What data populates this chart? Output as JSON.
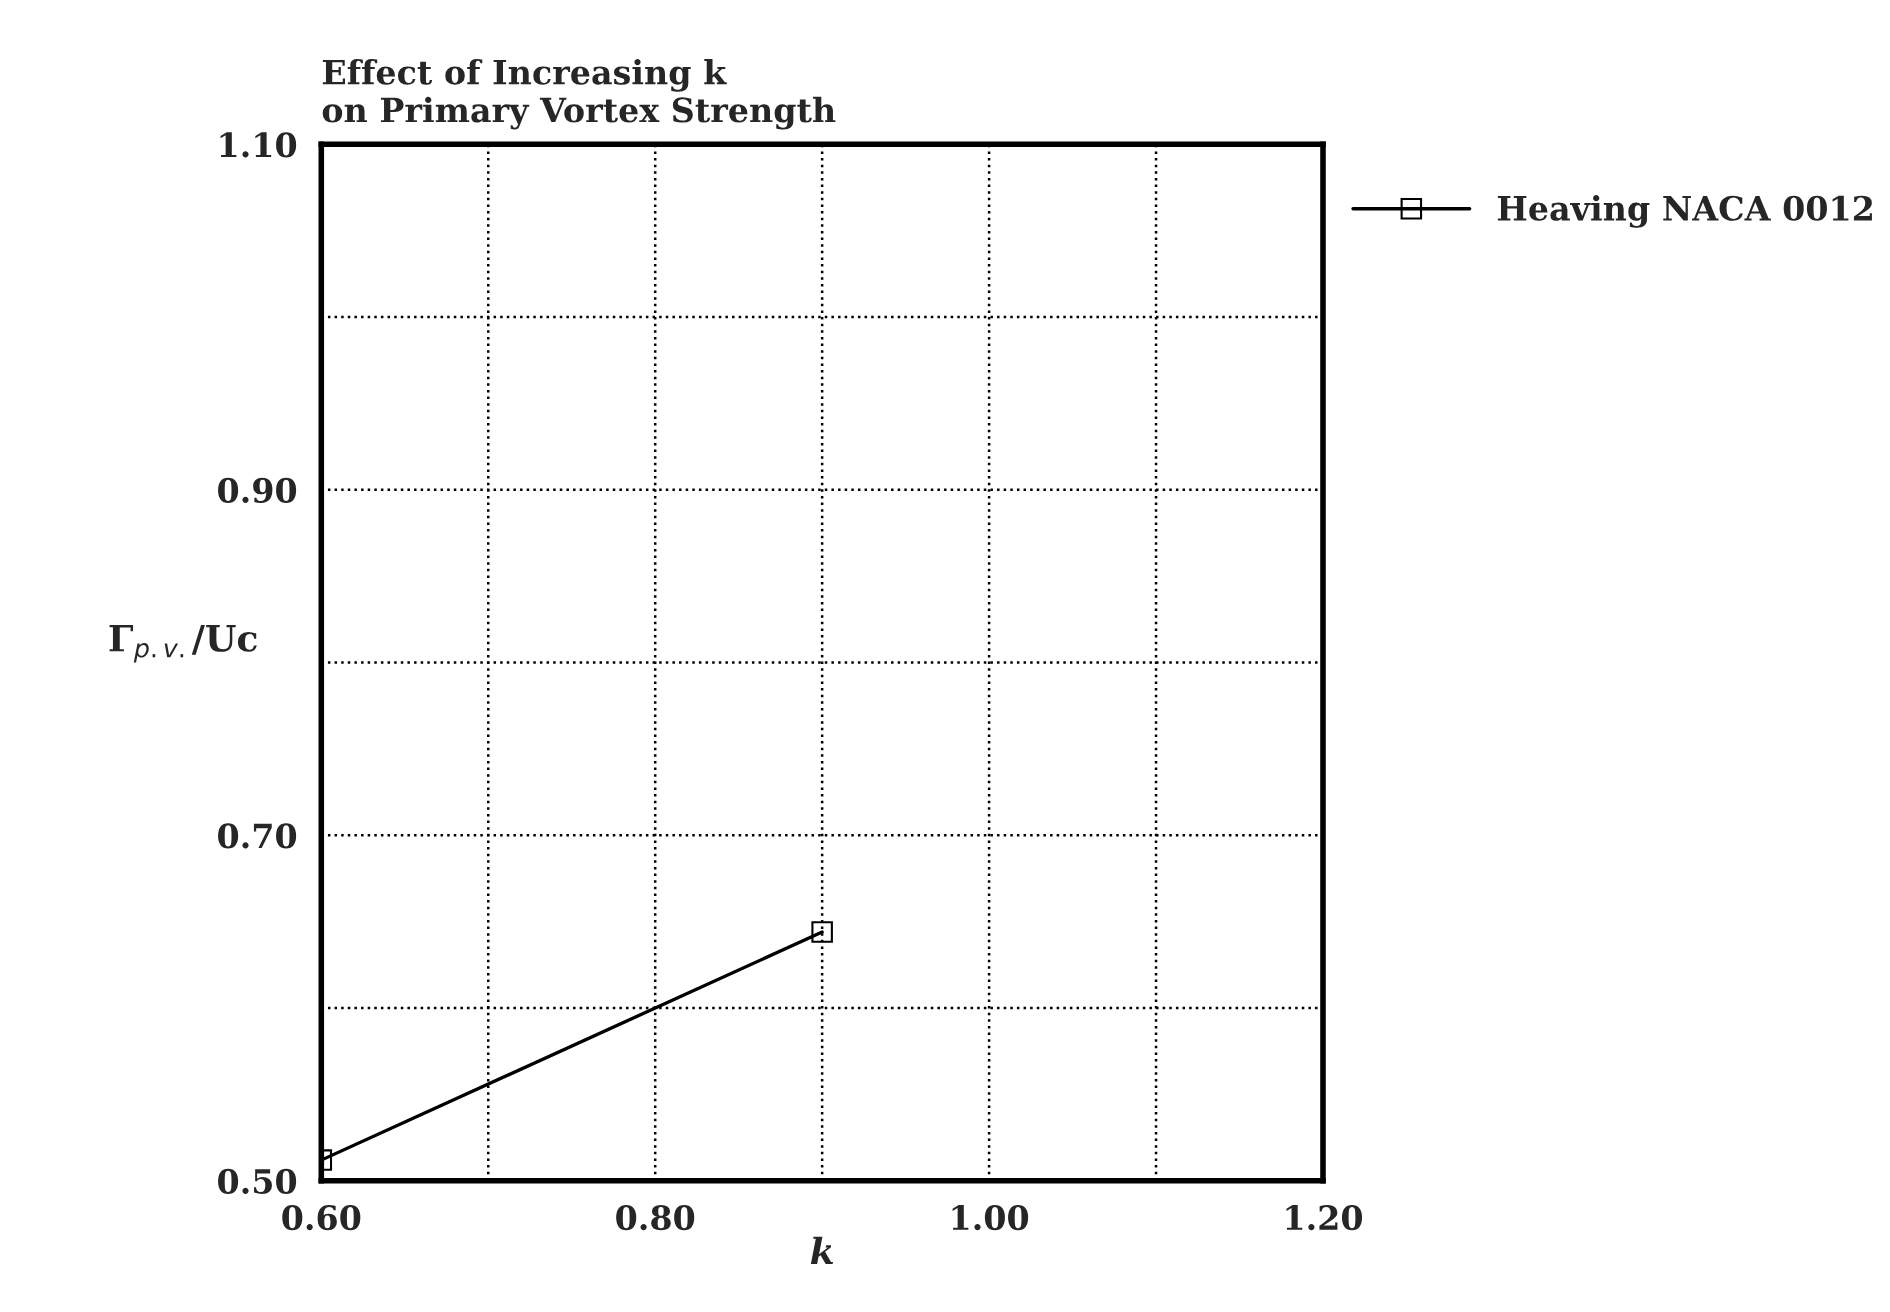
{
  "chart_data": {
    "type": "line",
    "title": "Effect of Increasing k\non Primary Vortex Strength",
    "xlabel": "k",
    "ylabel": "Γ$_{p.v.}$/Uc",
    "x": [
      0.6,
      0.9
    ],
    "series": [
      {
        "name": "Heaving NACA 0012",
        "color": "#000000",
        "values": [
          0.512,
          0.644
        ]
      }
    ],
    "xlim": [
      0.6,
      1.2
    ],
    "xticks": [
      {
        "value": 0.6,
        "label": "0.60"
      },
      {
        "value": 0.7,
        "label": null
      },
      {
        "value": 0.8,
        "label": "0.80"
      },
      {
        "value": 0.9,
        "label": null
      },
      {
        "value": 1.0,
        "label": "1.00"
      },
      {
        "value": 1.1,
        "label": null
      },
      {
        "value": 1.2,
        "label": "1.20"
      }
    ],
    "ylim": [
      0.5,
      1.1
    ],
    "yticks": [
      {
        "value": 0.5,
        "label": "0.50"
      },
      {
        "value": 0.6,
        "label": null
      },
      {
        "value": 0.7,
        "label": "0.70"
      },
      {
        "value": 0.8,
        "label": null
      },
      {
        "value": 0.9,
        "label": "0.90"
      },
      {
        "value": 1.0,
        "label": null
      },
      {
        "value": 1.1,
        "label": "1.10"
      }
    ],
    "grid": true,
    "legend": "top right",
    "marker": "square",
    "line_style": "solid"
  }
}
